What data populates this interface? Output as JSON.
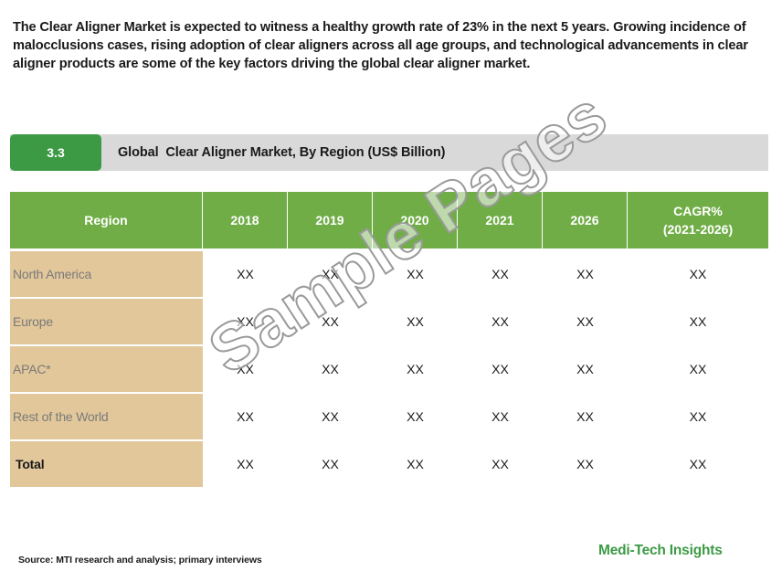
{
  "intro_text": "The Clear Aligner Market is expected to witness a healthy growth rate of 23% in the next 5 years. Growing incidence of malocclusions cases, rising adoption of clear aligners across all age groups, and technological advancements in clear aligner products are some of the key factors driving the global clear aligner market.",
  "section": {
    "number": "3.3",
    "title": "Global  Clear Aligner Market, By Region (US$ Billion)"
  },
  "table": {
    "headers": [
      "Region",
      "2018",
      "2019",
      "2020",
      "2021",
      "2026",
      "CAGR%\n(2021-2026)"
    ],
    "rows": [
      {
        "region": "North America",
        "values": [
          "XX",
          "XX",
          "XX",
          "XX",
          "XX",
          "XX"
        ]
      },
      {
        "region": "Europe",
        "values": [
          "XX",
          "XX",
          "XX",
          "XX",
          "XX",
          "XX"
        ]
      },
      {
        "region": "APAC*",
        "values": [
          "XX",
          "XX",
          "XX",
          "XX",
          "XX",
          "XX"
        ]
      },
      {
        "region": "Rest of the World",
        "values": [
          "XX",
          "XX",
          "XX",
          "XX",
          "XX",
          "XX"
        ]
      },
      {
        "region": "Total",
        "values": [
          "XX",
          "XX",
          "XX",
          "XX",
          "XX",
          "XX"
        ]
      }
    ]
  },
  "watermark": "Sample Pages",
  "footer": {
    "source": "Source: MTI research and analysis; primary interviews",
    "brand": "Medi-Tech Insights"
  },
  "colors": {
    "header_green": "#70ad47",
    "section_green": "#3c9a45",
    "region_tan": "#e2c79a",
    "bar_gray": "#d9d9d9"
  }
}
